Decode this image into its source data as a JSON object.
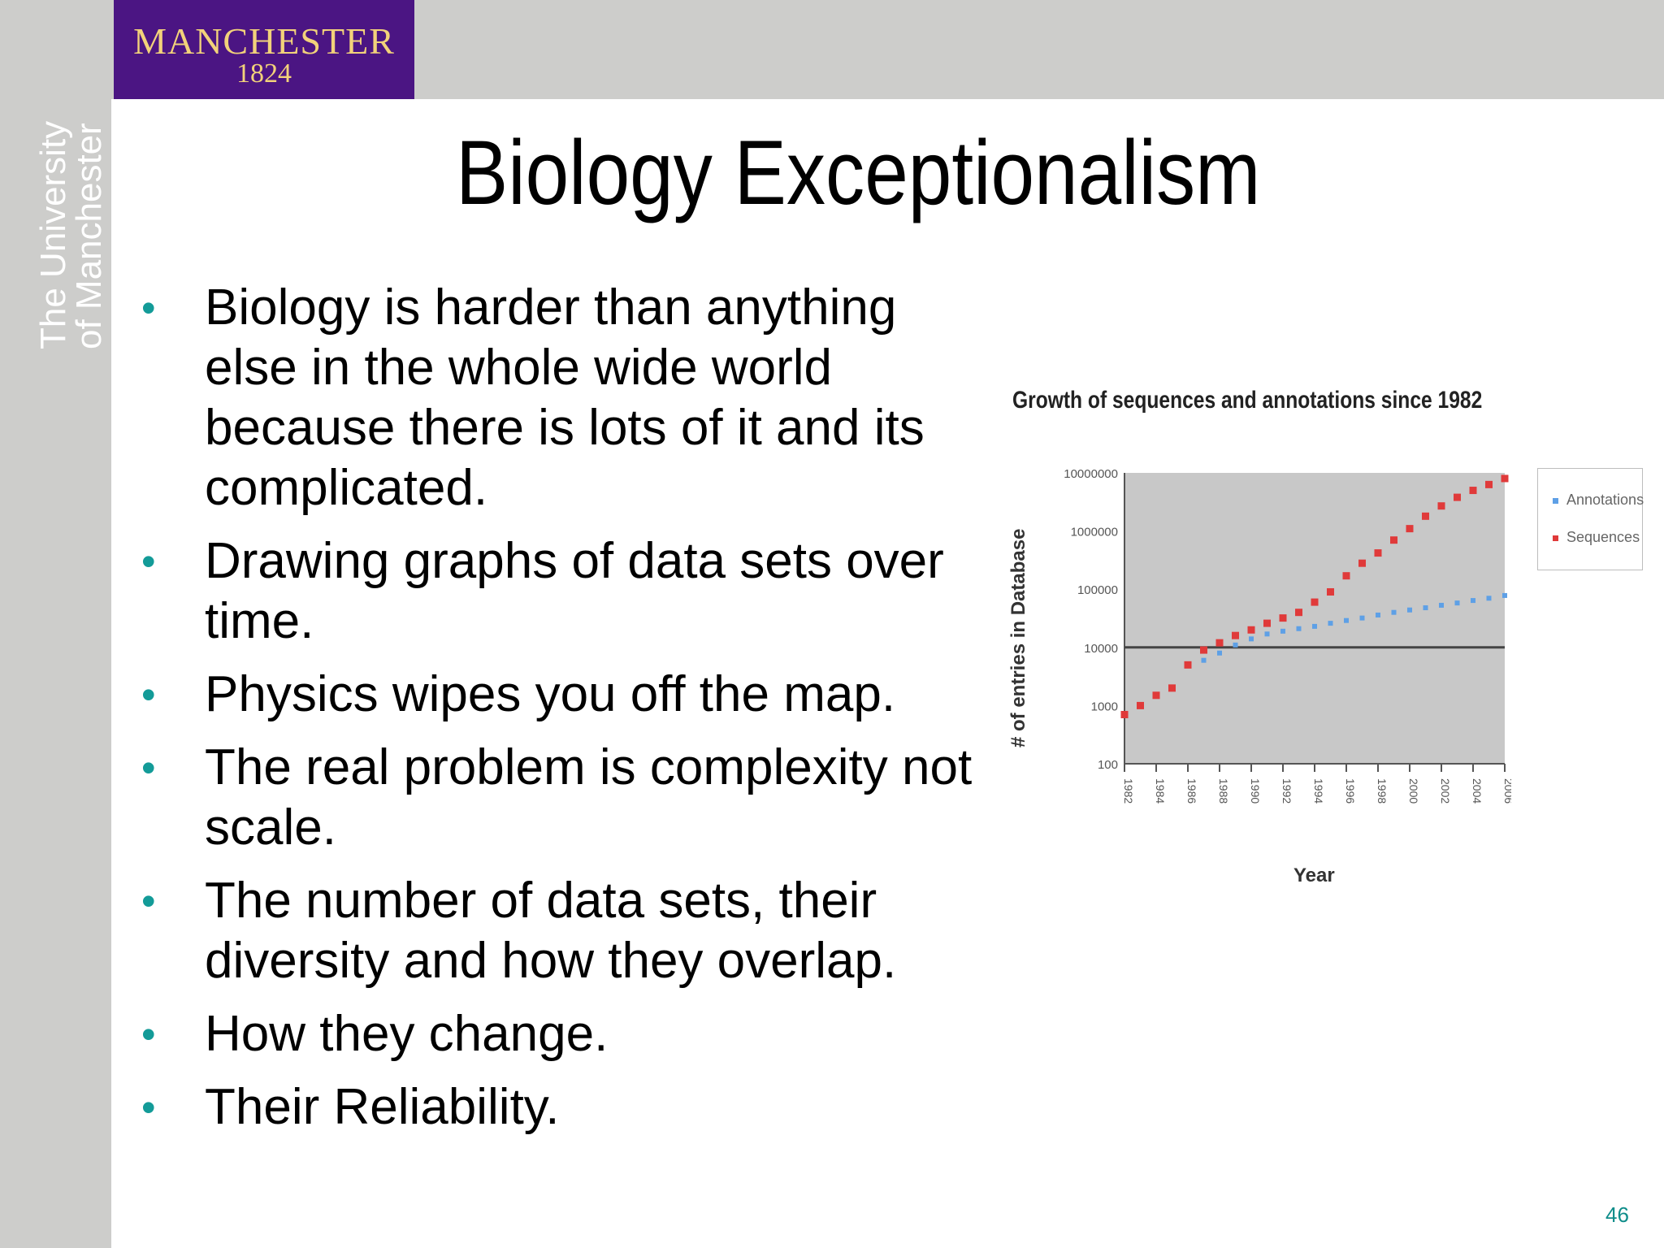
{
  "brand": {
    "logo_name": "MANCHESTER",
    "logo_year": "1824",
    "vertical_line1": "The University",
    "vertical_line2": "of Manchester",
    "logo_bg": "#4b1583",
    "logo_fg": "#f2d27a",
    "bar_color": "#cdcdcb"
  },
  "slide": {
    "title": "Biology Exceptionalism",
    "page_number": "46",
    "bullet_color": "#139b98",
    "bullets": [
      "Biology is harder than anything else in the whole wide world because there is lots of it and its complicated.",
      "Drawing graphs of data sets over time.",
      "Physics wipes you off the map.",
      "The real problem is complexity not scale.",
      "The number of data sets, their diversity and how they overlap.",
      "How they change.",
      "Their Reliability."
    ]
  },
  "chart_data": {
    "type": "scatter",
    "title": "Growth of sequences and annotations since 1982",
    "xlabel": "Year",
    "ylabel": "# of entries in Database",
    "y_scale": "log",
    "ylim": [
      100,
      10000000
    ],
    "y_ticks": [
      "100",
      "1000",
      "10000",
      "100000",
      "1000000",
      "10000000"
    ],
    "x_ticks": [
      "1982",
      "1984",
      "1986",
      "1988",
      "1990",
      "1992",
      "1994",
      "1996",
      "1998",
      "2000",
      "2002",
      "2004",
      "2006"
    ],
    "xlim": [
      1982,
      2006
    ],
    "reference_line_y": 10000,
    "plot_bg": "#c8c8c8",
    "series": [
      {
        "name": "Annotations",
        "color": "#5ea0e6",
        "x": [
          1986,
          1987,
          1988,
          1989,
          1990,
          1991,
          1992,
          1993,
          1994,
          1995,
          1996,
          1997,
          1998,
          1999,
          2000,
          2001,
          2002,
          2003,
          2004,
          2005,
          2006
        ],
        "y": [
          5000,
          6000,
          8000,
          11000,
          14000,
          17000,
          19000,
          21000,
          23000,
          26000,
          29000,
          32000,
          36000,
          40000,
          44000,
          48000,
          53000,
          58000,
          64000,
          70000,
          78000
        ]
      },
      {
        "name": "Sequences",
        "color": "#e03a3a",
        "x": [
          1982,
          1983,
          1984,
          1985,
          1986,
          1987,
          1988,
          1989,
          1990,
          1991,
          1992,
          1993,
          1994,
          1995,
          1996,
          1997,
          1998,
          1999,
          2000,
          2001,
          2002,
          2003,
          2004,
          2005,
          2006
        ],
        "y": [
          700,
          1000,
          1500,
          2000,
          5000,
          9000,
          12000,
          16000,
          20000,
          26000,
          32000,
          40000,
          60000,
          90000,
          170000,
          280000,
          420000,
          700000,
          1100000,
          1800000,
          2700000,
          3800000,
          5000000,
          6300000,
          8000000
        ]
      }
    ]
  }
}
